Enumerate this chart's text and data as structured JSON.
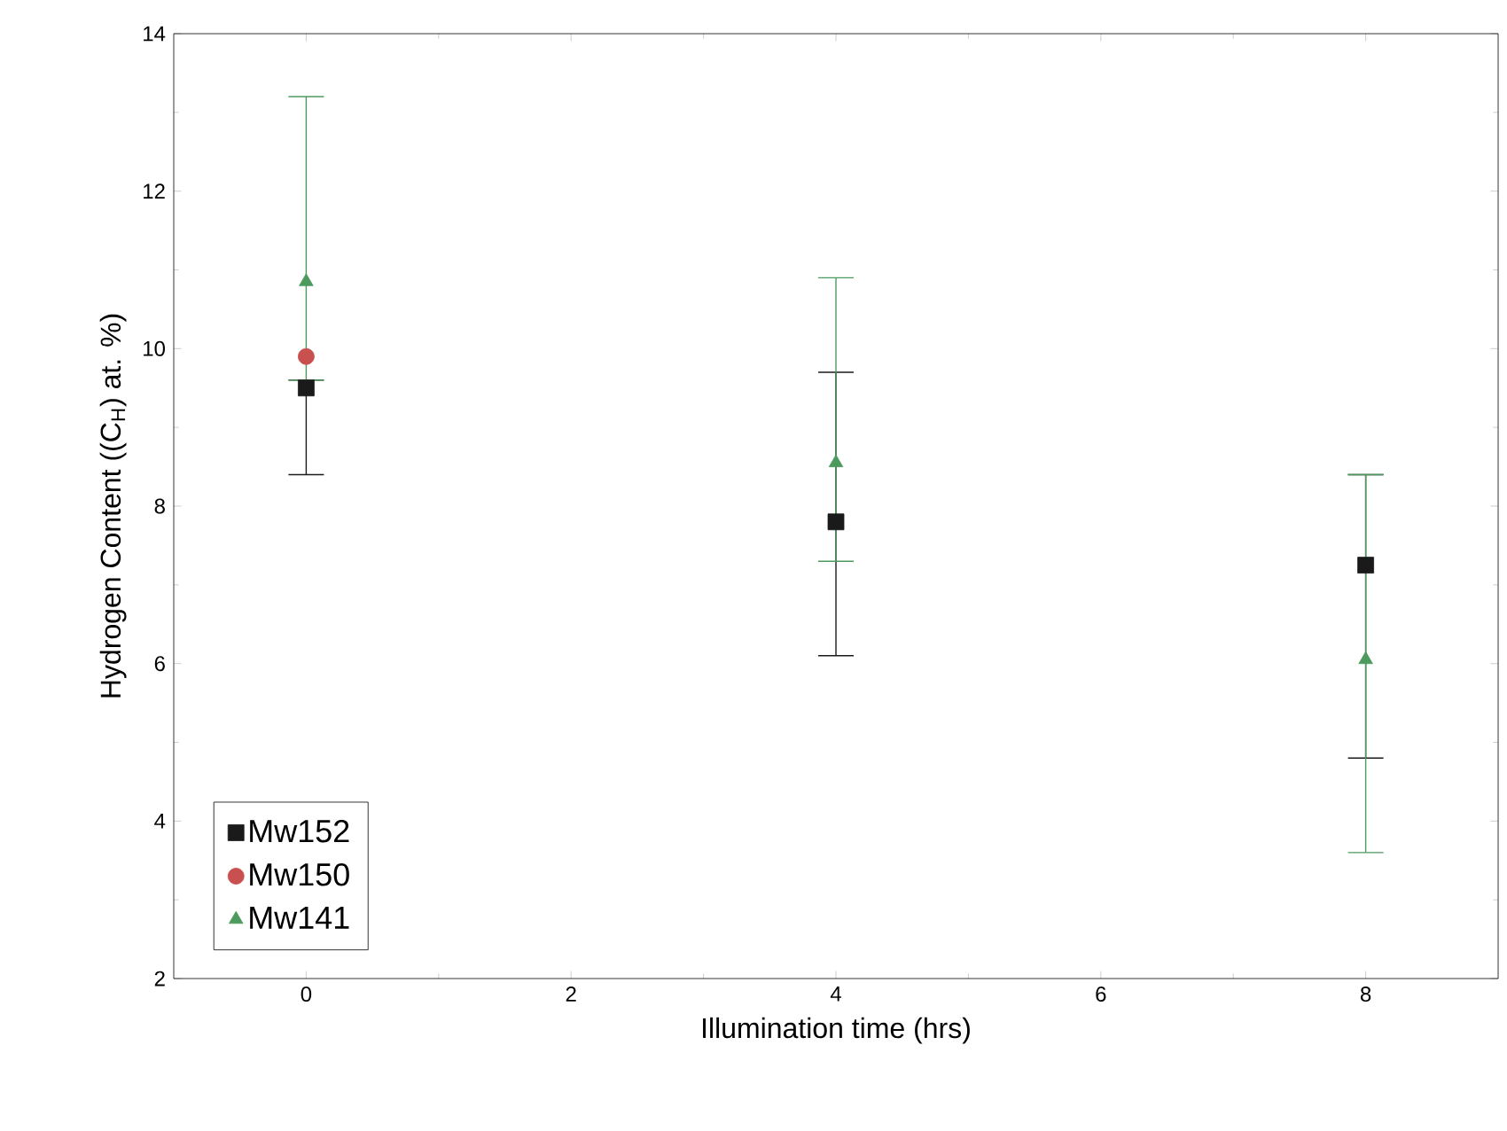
{
  "chart_data": {
    "type": "scatter",
    "xlabel": "Illumination time (hrs)",
    "ylabel": "Hydrogen Content ((C$_{H}$) at. %)",
    "x": [
      0,
      4,
      8
    ],
    "xlim": [
      -1,
      9
    ],
    "xticks": [
      0,
      2,
      4,
      6,
      8
    ],
    "ylim": [
      2,
      14
    ],
    "yticks": [
      2,
      4,
      6,
      8,
      10,
      12,
      14
    ],
    "grid": false,
    "legend": "bottom left",
    "series": [
      {
        "name": "Mw152",
        "color": "#1a1a1a",
        "marker": "square",
        "values": [
          9.5,
          7.8,
          7.25
        ],
        "errors": [
          [
            8.4,
            9.6
          ],
          [
            6.1,
            9.7
          ],
          [
            4.8,
            8.4
          ]
        ]
      },
      {
        "name": "Mw150",
        "color": "#c8504e",
        "marker": "circle",
        "values": [
          9.9,
          null,
          null
        ]
      },
      {
        "name": "Mw141",
        "color": "#4c9a5e",
        "marker": "triangle",
        "values": [
          10.85,
          8.55,
          6.05
        ],
        "errors": [
          [
            9.6,
            13.2
          ],
          [
            7.3,
            10.9
          ],
          [
            3.6,
            8.4
          ]
        ]
      }
    ]
  }
}
